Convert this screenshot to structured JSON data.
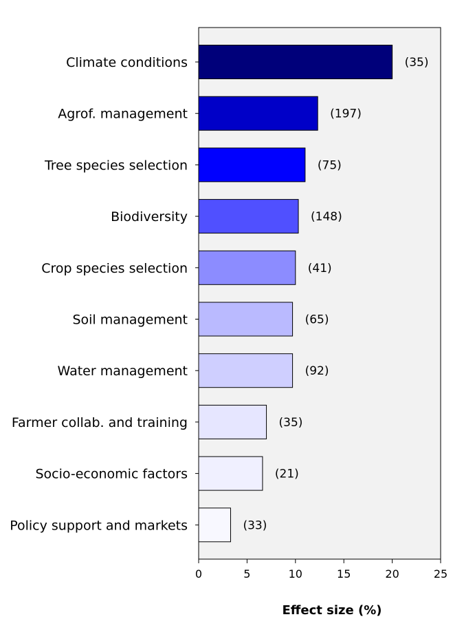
{
  "chart_data": {
    "type": "bar",
    "orientation": "horizontal",
    "categories": [
      "Climate conditions",
      "Agrof. management",
      "Tree species selection",
      "Biodiversity",
      "Crop species selection",
      "Soil management",
      "Water management",
      "Farmer collab. and training",
      "Socio-economic factors",
      "Policy support and markets"
    ],
    "values": [
      20.0,
      12.3,
      11.0,
      10.3,
      10.0,
      9.7,
      9.7,
      7.0,
      6.6,
      3.3
    ],
    "counts": [
      "(35)",
      "(197)",
      "(75)",
      "(148)",
      "(41)",
      "(65)",
      "(92)",
      "(35)",
      "(21)",
      "(33)"
    ],
    "bar_colors": [
      "#00007a",
      "#0000c8",
      "#0000ff",
      "#5050ff",
      "#8c8cff",
      "#babaff",
      "#cfcfff",
      "#e6e6ff",
      "#f0f0ff",
      "#f8f8ff"
    ],
    "xlabel": "Effect size (%)",
    "ylabel": "",
    "title": "",
    "xlim": [
      0,
      25
    ],
    "xticks": [
      0,
      5,
      10,
      15,
      20,
      25
    ],
    "plot_background": "#f2f2f2",
    "grid": false,
    "legend": "none"
  }
}
